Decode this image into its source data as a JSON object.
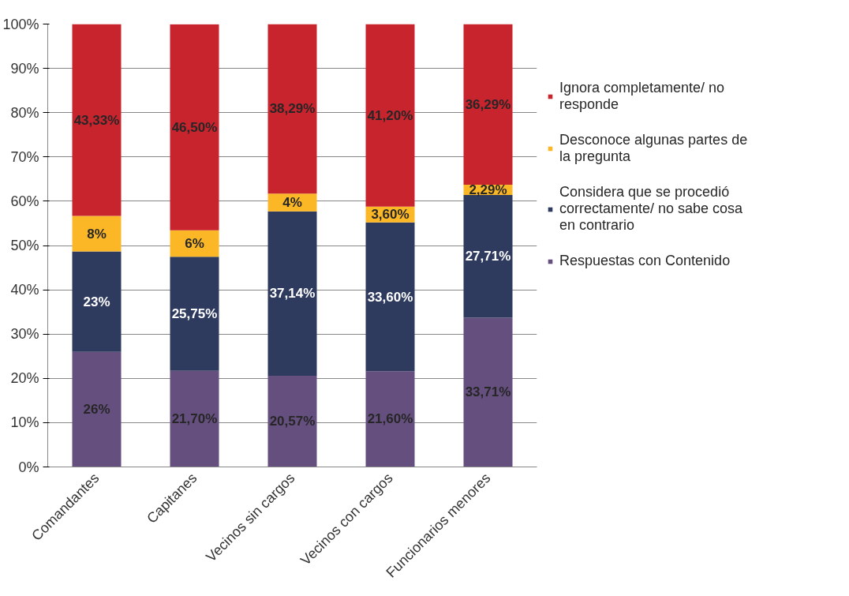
{
  "chart_data": {
    "type": "bar",
    "stacked": true,
    "categories": [
      "Comandantes",
      "Capitanes",
      "Vecinos sin cargos",
      "Vecinos con cargos",
      "Funcionarios menores"
    ],
    "series": [
      {
        "name": "Respuestas con Contenido",
        "color": "#654f7f",
        "values": [
          26,
          21.7,
          20.57,
          21.6,
          33.71
        ],
        "value_labels": [
          "26%",
          "21,70%",
          "20,57%",
          "21,60%",
          "33,71%"
        ]
      },
      {
        "name": "Considera que se procedió correctamente/ no sabe cosa en contrario",
        "color": "#2e3a5e",
        "values": [
          22.67,
          25.75,
          37.14,
          33.6,
          27.71
        ],
        "value_labels": [
          "23%",
          "25,75%",
          "37,14%",
          "33,60%",
          "27,71%"
        ]
      },
      {
        "name": "Desconoce algunas partes de la pregunta",
        "color": "#fbb726",
        "values": [
          8,
          6,
          4,
          3.6,
          2.29
        ],
        "value_labels": [
          "8%",
          "6%",
          "4%",
          "3,60%",
          "2,29%"
        ]
      },
      {
        "name": "Ignora completamente/ no responde",
        "color": "#c8242e",
        "values": [
          43.33,
          46.5,
          38.29,
          41.2,
          36.29
        ],
        "value_labels": [
          "43,33%",
          "46,50%",
          "38,29%",
          "41,20%",
          "36,29%"
        ]
      }
    ],
    "ylim": [
      0,
      100
    ],
    "yticks": [
      {
        "value": 0,
        "label": "0%"
      },
      {
        "value": 10,
        "label": "10%"
      },
      {
        "value": 20,
        "label": "20%"
      },
      {
        "value": 30,
        "label": "30%"
      },
      {
        "value": 40,
        "label": "40%"
      },
      {
        "value": 50,
        "label": "50%"
      },
      {
        "value": 60,
        "label": "60%"
      },
      {
        "value": 70,
        "label": "70%"
      },
      {
        "value": 80,
        "label": "80%"
      },
      {
        "value": 90,
        "label": "90%"
      },
      {
        "value": 100,
        "label": "100%"
      }
    ],
    "grid": "y",
    "legend": "right"
  }
}
